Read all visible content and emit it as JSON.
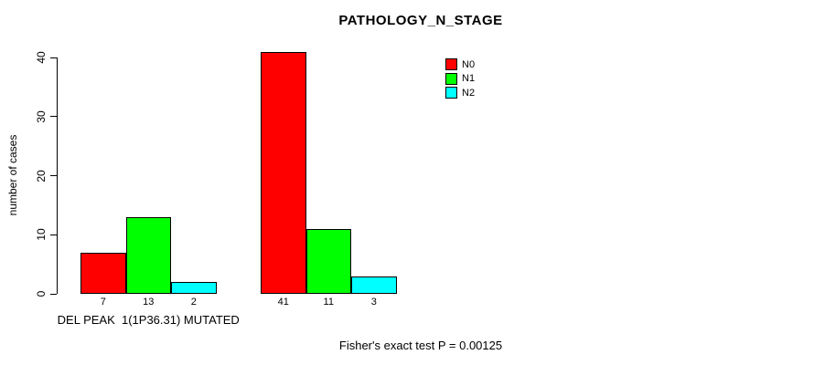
{
  "chart_data": {
    "type": "bar",
    "title": "PATHOLOGY_N_STAGE",
    "ylabel": "number of cases",
    "xlabel": "",
    "ylim": [
      0,
      40
    ],
    "yticks": [
      0,
      10,
      20,
      30,
      40
    ],
    "grid": false,
    "legend_position": "top-right",
    "series": [
      {
        "name": "N0",
        "color": "#ff0000"
      },
      {
        "name": "N1",
        "color": "#00ff00"
      },
      {
        "name": "N2",
        "color": "#00ffff"
      }
    ],
    "groups": [
      {
        "label": "DEL PEAK  1(1P36.31) MUTATED",
        "values": [
          7,
          13,
          2
        ]
      },
      {
        "label": "",
        "values": [
          41,
          11,
          3
        ]
      }
    ],
    "bar_value_labels": [
      "7",
      "13",
      "2",
      "41",
      "11",
      "3"
    ],
    "footnote": "Fisher's exact test P = 0.00125"
  }
}
